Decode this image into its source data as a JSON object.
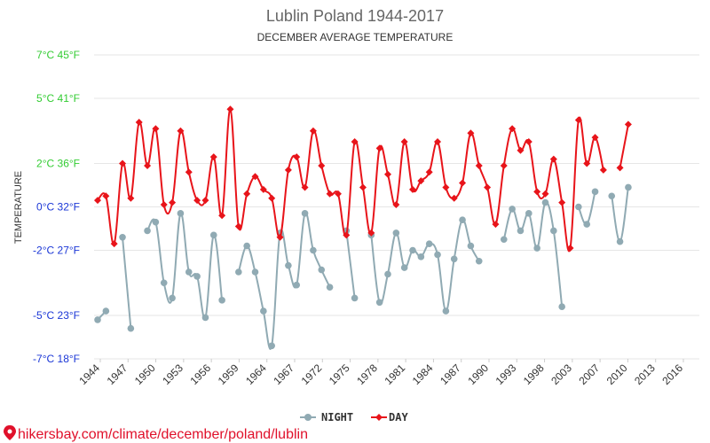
{
  "chart_data": {
    "type": "line",
    "title": "Lublin Poland 1944-2017",
    "subtitle": "DECEMBER AVERAGE TEMPERATURE",
    "ylabel": "TEMPERATURE",
    "ylim": [
      -7,
      7
    ],
    "xlim": [
      1944,
      2017
    ],
    "y_ticks": [
      {
        "value": 7,
        "label": "7°C 45°F",
        "color": "#33cc33"
      },
      {
        "value": 5,
        "label": "5°C 41°F",
        "color": "#33cc33"
      },
      {
        "value": 2,
        "label": "2°C 36°F",
        "color": "#33cc33"
      },
      {
        "value": 0,
        "label": "0°C 32°F",
        "color": "#1a36d6"
      },
      {
        "value": -2,
        "label": "-2°C 27°F",
        "color": "#1a36d6"
      },
      {
        "value": -5,
        "label": "-5°C 23°F",
        "color": "#1a36d6"
      },
      {
        "value": -7,
        "label": "-7°C 18°F",
        "color": "#1a36d6"
      }
    ],
    "x_ticks": [
      "1944",
      "1947",
      "1950",
      "1953",
      "1956",
      "1959",
      "1964",
      "1967",
      "1972",
      "1975",
      "1978",
      "1981",
      "1984",
      "1987",
      "1990",
      "1993",
      "1998",
      "2003",
      "2007",
      "2010",
      "2013",
      "2016"
    ],
    "grid": true,
    "legend_position": "bottom",
    "series": [
      {
        "name": "NIGHT",
        "color": "#90aab3",
        "points": [
          [
            1944,
            -5.2
          ],
          [
            1945,
            -4.8
          ],
          [
            null,
            null
          ],
          [
            1947,
            -1.4
          ],
          [
            1948,
            -5.6
          ],
          [
            null,
            null
          ],
          [
            1950,
            -1.1
          ],
          [
            1951,
            -0.7
          ],
          [
            1952,
            -3.5
          ],
          [
            1953,
            -4.2
          ],
          [
            1954,
            -0.3
          ],
          [
            1955,
            -3.0
          ],
          [
            1956,
            -3.2
          ],
          [
            1957,
            -5.1
          ],
          [
            1958,
            -1.3
          ],
          [
            1959,
            -4.3
          ],
          [
            null,
            null
          ],
          [
            1961,
            -3.0
          ],
          [
            1962,
            -1.8
          ],
          [
            1963,
            -3.0
          ],
          [
            1964,
            -4.8
          ],
          [
            1965,
            -6.4
          ],
          [
            1966,
            -1.2
          ],
          [
            1967,
            -2.7
          ],
          [
            1968,
            -3.6
          ],
          [
            1969,
            -0.3
          ],
          [
            1970,
            -2.0
          ],
          [
            1971,
            -2.9
          ],
          [
            1972,
            -3.7
          ],
          [
            null,
            null
          ],
          [
            1974,
            -1.1
          ],
          [
            1975,
            -4.2
          ],
          [
            null,
            null
          ],
          [
            1977,
            -1.3
          ],
          [
            1978,
            -4.4
          ],
          [
            1979,
            -3.1
          ],
          [
            1980,
            -1.2
          ],
          [
            1981,
            -2.8
          ],
          [
            1982,
            -2.0
          ],
          [
            1983,
            -2.3
          ],
          [
            1984,
            -1.7
          ],
          [
            1985,
            -2.2
          ],
          [
            1986,
            -4.8
          ],
          [
            1987,
            -2.4
          ],
          [
            1988,
            -0.6
          ],
          [
            1989,
            -1.8
          ],
          [
            1990,
            -2.5
          ],
          [
            null,
            null
          ],
          [
            1993,
            -1.5
          ],
          [
            1994,
            -0.1
          ],
          [
            1995,
            -1.1
          ],
          [
            1996,
            -0.3
          ],
          [
            1997,
            -1.9
          ],
          [
            1998,
            0.2
          ],
          [
            1999,
            -1.1
          ],
          [
            2000,
            -4.6
          ],
          [
            null,
            null
          ],
          [
            2002,
            0.0
          ],
          [
            2003,
            -0.8
          ],
          [
            2004,
            0.7
          ],
          [
            null,
            null
          ],
          [
            2006,
            0.5
          ],
          [
            2007,
            -1.6
          ],
          [
            2008,
            0.9
          ]
        ]
      },
      {
        "name": "DAY",
        "color": "#e8141a",
        "points": [
          [
            1944,
            0.3
          ],
          [
            1945,
            0.5
          ],
          [
            1946,
            -1.7
          ],
          [
            1947,
            2.0
          ],
          [
            1948,
            0.4
          ],
          [
            1949,
            3.9
          ],
          [
            1950,
            1.9
          ],
          [
            1951,
            3.6
          ],
          [
            1952,
            0.1
          ],
          [
            1953,
            0.2
          ],
          [
            1954,
            3.5
          ],
          [
            1955,
            1.6
          ],
          [
            1956,
            0.3
          ],
          [
            1957,
            0.3
          ],
          [
            1958,
            2.3
          ],
          [
            1959,
            -0.4
          ],
          [
            1960,
            4.5
          ],
          [
            1961,
            -0.9
          ],
          [
            1962,
            0.6
          ],
          [
            1963,
            1.4
          ],
          [
            1964,
            0.8
          ],
          [
            1965,
            0.4
          ],
          [
            1966,
            -1.4
          ],
          [
            1967,
            1.7
          ],
          [
            1968,
            2.3
          ],
          [
            1969,
            0.9
          ],
          [
            1970,
            3.5
          ],
          [
            1971,
            1.9
          ],
          [
            1972,
            0.6
          ],
          [
            1973,
            0.6
          ],
          [
            1974,
            -1.3
          ],
          [
            1975,
            3.0
          ],
          [
            1976,
            0.9
          ],
          [
            1977,
            -1.2
          ],
          [
            1978,
            2.7
          ],
          [
            1979,
            1.5
          ],
          [
            1980,
            0.1
          ],
          [
            1981,
            3.0
          ],
          [
            1982,
            0.8
          ],
          [
            1983,
            1.2
          ],
          [
            1984,
            1.6
          ],
          [
            1985,
            3.0
          ],
          [
            1986,
            0.9
          ],
          [
            1987,
            0.4
          ],
          [
            1988,
            1.1
          ],
          [
            1989,
            3.4
          ],
          [
            1990,
            1.9
          ],
          [
            1991,
            0.9
          ],
          [
            1992,
            -0.8
          ],
          [
            1993,
            1.9
          ],
          [
            1994,
            3.6
          ],
          [
            1995,
            2.6
          ],
          [
            1996,
            3.0
          ],
          [
            1997,
            0.7
          ],
          [
            1998,
            0.6
          ],
          [
            1999,
            2.2
          ],
          [
            2000,
            0.2
          ],
          [
            2001,
            -1.9
          ],
          [
            2002,
            4.0
          ],
          [
            2003,
            2.0
          ],
          [
            2004,
            3.2
          ],
          [
            2005,
            1.7
          ],
          [
            null,
            null
          ],
          [
            2007,
            1.8
          ],
          [
            2008,
            3.8
          ]
        ]
      }
    ]
  },
  "watermark": "hikersbay.com/climate/december/poland/lublin"
}
